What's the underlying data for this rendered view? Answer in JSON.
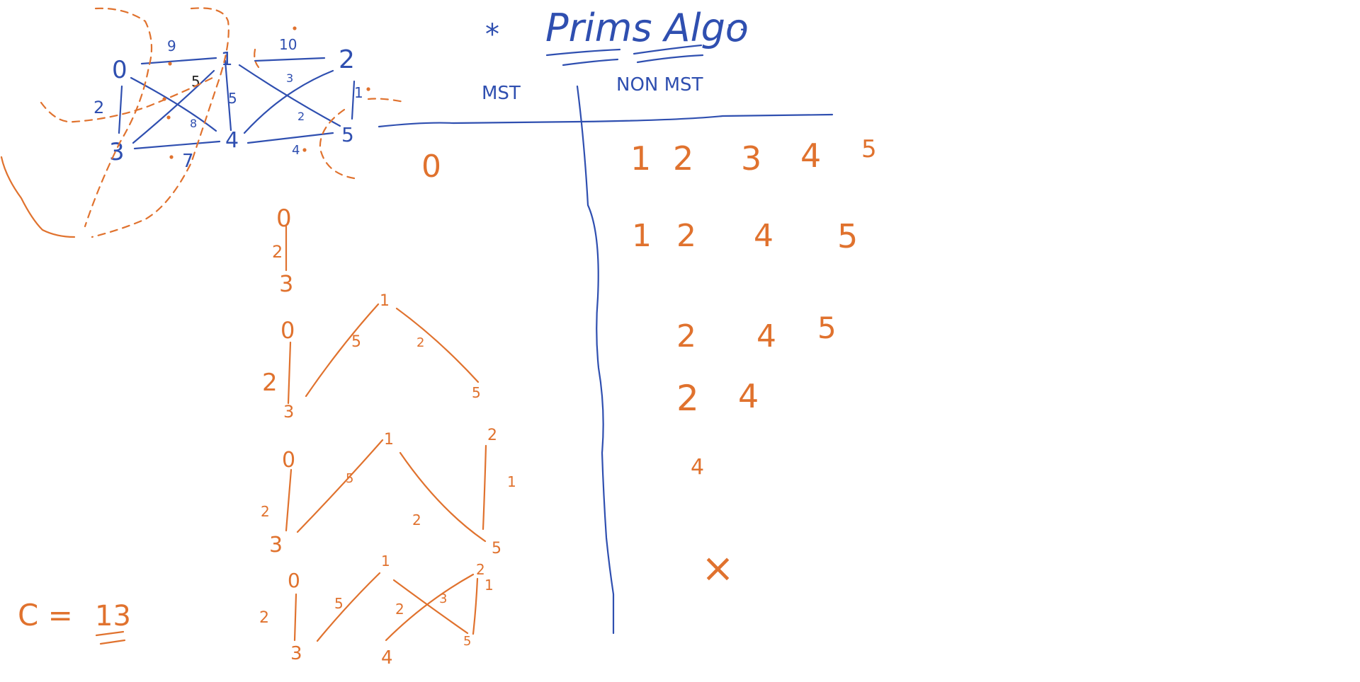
{
  "colors": {
    "blue": "#2f4fb0",
    "orange": "#e0722e",
    "black": "#222222"
  },
  "title": {
    "star": "*",
    "text": "Prims Algo",
    "suffix": ": -"
  },
  "table_headers": {
    "mst": "MST",
    "non_mst": "NON MST"
  },
  "graph": {
    "nodes": [
      "0",
      "1",
      "2",
      "3",
      "4",
      "5"
    ],
    "edges": [
      {
        "a": "0",
        "b": "1",
        "w": "9"
      },
      {
        "a": "1",
        "b": "2",
        "w": "10"
      },
      {
        "a": "0",
        "b": "3",
        "w": "2"
      },
      {
        "a": "1",
        "b": "4",
        "w": "5"
      },
      {
        "a": "2",
        "b": "5",
        "w": "1"
      },
      {
        "a": "3",
        "b": "4",
        "w": "7"
      },
      {
        "a": "4",
        "b": "5",
        "w": "4"
      },
      {
        "a": "0",
        "b": "4",
        "w": "5"
      },
      {
        "a": "3",
        "b": "1",
        "w": "8"
      },
      {
        "a": "1",
        "b": "5",
        "w": "2"
      },
      {
        "a": "4",
        "b": "2",
        "w": "3"
      }
    ]
  },
  "mst_column": {
    "first": "0"
  },
  "non_mst_rows": [
    [
      "1",
      "2",
      "3",
      "4",
      "5"
    ],
    [
      "1",
      "2",
      "4",
      "5"
    ],
    [
      "2",
      "4",
      "5"
    ],
    [
      "2",
      "4"
    ],
    [
      "4"
    ],
    [
      "×"
    ]
  ],
  "steps": [
    {
      "nodes": [
        "0",
        "3"
      ],
      "weights": [
        "2"
      ]
    },
    {
      "nodes": [
        "0",
        "3",
        "1",
        "5"
      ],
      "weights": [
        "2",
        "5",
        "2"
      ]
    },
    {
      "nodes": [
        "0",
        "3",
        "1",
        "5",
        "2"
      ],
      "weights": [
        "2",
        "5",
        "2",
        "1"
      ]
    },
    {
      "nodes": [
        "0",
        "3",
        "1",
        "4",
        "5",
        "2"
      ],
      "weights": [
        "2",
        "5",
        "2",
        "3",
        "1"
      ]
    }
  ],
  "cost": {
    "label": "C =",
    "value": "13"
  }
}
